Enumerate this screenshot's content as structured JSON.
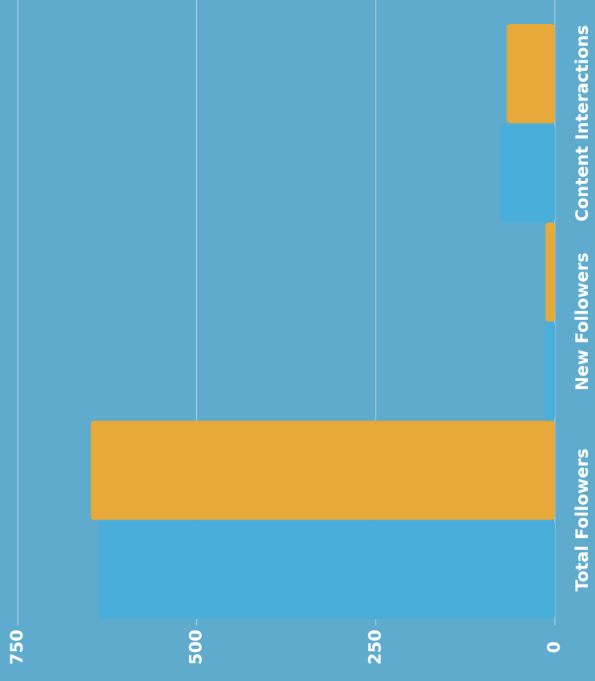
{
  "chart_data": {
    "type": "bar",
    "orientation": "horizontal",
    "categories": [
      "Total Followers",
      "New Followers",
      "Content Interactions"
    ],
    "series": [
      {
        "color": "#4aaedb",
        "values": [
          637,
          13,
          76
        ]
      },
      {
        "color": "#e6a93a",
        "values": [
          648,
          13,
          67
        ]
      }
    ],
    "xlim": [
      0,
      750
    ],
    "xticks": [
      0,
      250,
      500,
      750
    ],
    "grid": true
  }
}
